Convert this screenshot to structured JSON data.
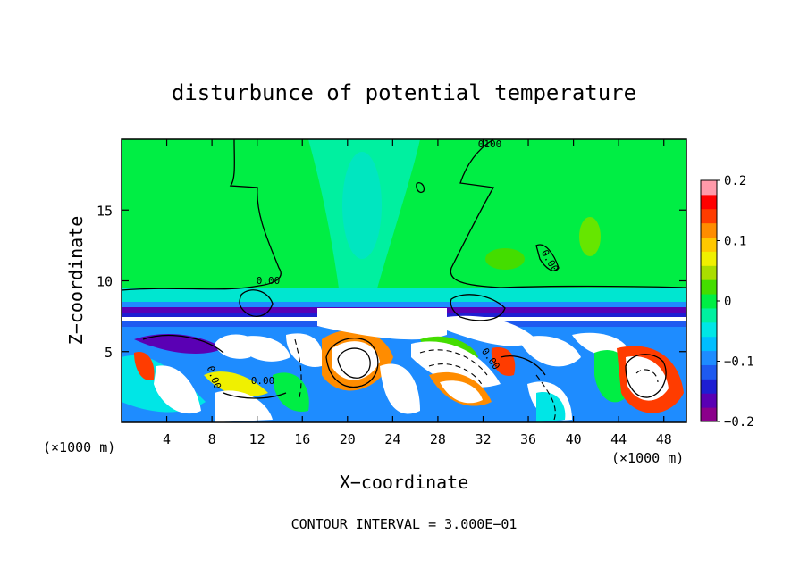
{
  "chart_data": {
    "type": "heatmap",
    "title": "disturbunce of potential temperature",
    "xlabel": "X−coordinate",
    "ylabel": "Z−coordinate",
    "x_unit_left": "(×1000 m)",
    "x_unit_right": "(×1000 m)",
    "footer": "CONTOUR INTERVAL = 3.000E−01",
    "xlim": [
      0,
      50
    ],
    "ylim": [
      0,
      20
    ],
    "x_ticks": [
      4,
      8,
      12,
      16,
      20,
      24,
      28,
      32,
      36,
      40,
      44,
      48
    ],
    "y_ticks": [
      5,
      10,
      15
    ],
    "grid": false,
    "colorbar": {
      "range": [
        -0.2,
        0.2
      ],
      "tick_labels": [
        "0.2",
        "0.1",
        "0",
        "−0.1",
        "−0.2"
      ],
      "tick_values": [
        0.2,
        0.1,
        0,
        -0.1,
        -0.2
      ],
      "levels": 16,
      "colors": [
        "#8b008b",
        "#5a00b4",
        "#1e1ed2",
        "#1e5af0",
        "#1e8cff",
        "#00beff",
        "#00e6e6",
        "#00f0a0",
        "#00ee44",
        "#44dd00",
        "#aadd00",
        "#f0f000",
        "#ffc800",
        "#ff8c00",
        "#ff3c00",
        "#ff0000",
        "#ff9aaa"
      ]
    },
    "contour_labels": [
      "0.00",
      "0.00",
      "0.00",
      "0.00",
      "0.00",
      "0100"
    ]
  }
}
